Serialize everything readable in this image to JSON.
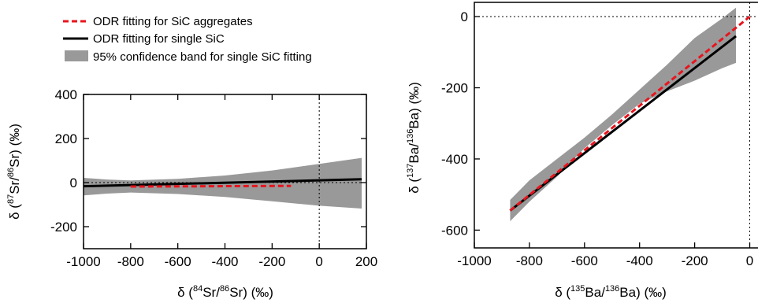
{
  "legend": {
    "items": [
      {
        "label": "ODR fitting for SiC aggregates",
        "style": "dashed",
        "color": "#e8141e"
      },
      {
        "label": "ODR fitting for single SiC",
        "style": "solid",
        "color": "#000000"
      },
      {
        "label": "95% confidence band for single SiC fitting",
        "style": "band",
        "color": "#999999"
      }
    ]
  },
  "chart_data": [
    {
      "type": "line",
      "name": "sr",
      "xlim": [
        -1000,
        200
      ],
      "ylim": [
        -300,
        400
      ],
      "x_ticks": [
        -1000,
        -800,
        -600,
        -400,
        -200,
        0,
        200
      ],
      "y_ticks": [
        -200,
        0,
        200,
        400
      ],
      "x_tick_labels": [
        "-1000",
        "-800",
        "-600",
        "-400",
        "-200",
        "0",
        "200"
      ],
      "y_tick_labels": [
        "-200",
        "0",
        "200",
        "400"
      ],
      "xlabel": {
        "pre": "δ (",
        "sup1": "84",
        "mid": "Sr/",
        "sup2": "86",
        "post": "Sr) (‰)"
      },
      "ylabel": {
        "pre": "δ (",
        "sup1": "87",
        "mid": "Sr/",
        "sup2": "86",
        "post": "Sr) (‰)"
      },
      "zero_lines": true,
      "series": [
        {
          "label_ref": 1,
          "x": [
            -1050,
            180
          ],
          "y": [
            -18,
            15
          ]
        },
        {
          "label_ref": 0,
          "x": [
            -800,
            -120
          ],
          "y": [
            -18,
            -15
          ]
        }
      ],
      "band": {
        "x": [
          -1050,
          -900,
          -800,
          -600,
          -400,
          -200,
          0,
          180
        ],
        "upper": [
          25,
          14,
          10,
          17,
          32,
          55,
          85,
          112
        ],
        "lower": [
          -62,
          -50,
          -45,
          -52,
          -65,
          -85,
          -105,
          -118
        ]
      }
    },
    {
      "type": "line",
      "name": "ba",
      "xlim": [
        -1000,
        30
      ],
      "ylim": [
        -650,
        40
      ],
      "x_ticks": [
        -1000,
        -800,
        -600,
        -400,
        -200,
        0
      ],
      "y_ticks": [
        -600,
        -400,
        -200,
        0
      ],
      "x_tick_labels": [
        "-1000",
        "-800",
        "-600",
        "-400",
        "-200",
        "0"
      ],
      "y_tick_labels": [
        "-600",
        "-400",
        "-200",
        "0"
      ],
      "xlabel": {
        "pre": "δ (",
        "sup1": "135",
        "mid": "Ba/",
        "sup2": "136",
        "post": "Ba) (‰)"
      },
      "ylabel": {
        "pre": "δ (",
        "sup1": "137",
        "mid": "Ba/",
        "sup2": "136",
        "post": "Ba) (‰)"
      },
      "zero_lines": true,
      "series": [
        {
          "label_ref": 1,
          "x": [
            -870,
            -50
          ],
          "y": [
            -545,
            -55
          ]
        },
        {
          "label_ref": 0,
          "x": [
            -870,
            0
          ],
          "y": [
            -545,
            0
          ]
        }
      ],
      "band": {
        "x": [
          -870,
          -800,
          -700,
          -600,
          -500,
          -400,
          -300,
          -200,
          -100,
          -50
        ],
        "upper": [
          -515,
          -460,
          -400,
          -340,
          -275,
          -205,
          -135,
          -60,
          -5,
          25
        ],
        "lower": [
          -575,
          -520,
          -450,
          -370,
          -305,
          -245,
          -210,
          -180,
          -145,
          -130
        ]
      }
    }
  ]
}
